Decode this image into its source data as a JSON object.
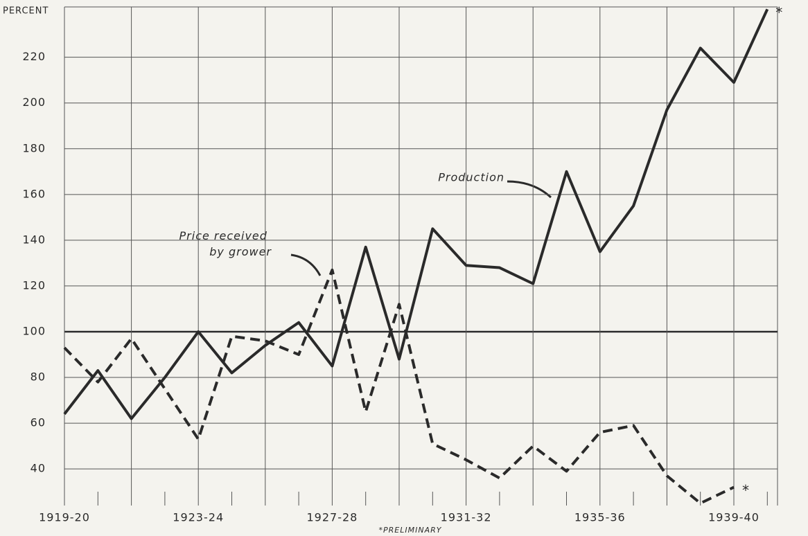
{
  "chart_data": {
    "type": "line",
    "y_label": "PERCENT",
    "categories": [
      "1919-20",
      null,
      null,
      null,
      "1923-24",
      null,
      null,
      null,
      "1927-28",
      null,
      null,
      null,
      "1931-32",
      null,
      null,
      null,
      "1935-36",
      null,
      null,
      null,
      "1939-40",
      null
    ],
    "series": [
      {
        "name": "Production",
        "color": "#2a2a2a",
        "dash": false,
        "values": [
          64,
          83,
          62,
          80,
          100,
          82,
          94,
          104,
          85,
          137,
          88,
          145,
          129,
          128,
          121,
          170,
          135,
          155,
          197,
          224,
          209,
          241
        ]
      },
      {
        "name": "Price received by grower",
        "color": "#2a2a2a",
        "dash": true,
        "values": [
          93,
          78,
          97,
          75,
          53,
          98,
          96,
          90,
          127,
          65,
          112,
          51,
          44,
          36,
          50,
          39,
          56,
          59,
          37,
          25,
          32,
          null
        ]
      }
    ],
    "ylim": [
      24,
      242
    ],
    "yticks": [
      40,
      60,
      80,
      100,
      120,
      140,
      160,
      180,
      200,
      220
    ],
    "baseline": 100,
    "grid": true,
    "annotations": [
      {
        "text": "*",
        "series": 0,
        "index": 21
      },
      {
        "text": "*",
        "series": 1,
        "index": 20
      }
    ],
    "footnote": "*PRELIMINARY"
  }
}
